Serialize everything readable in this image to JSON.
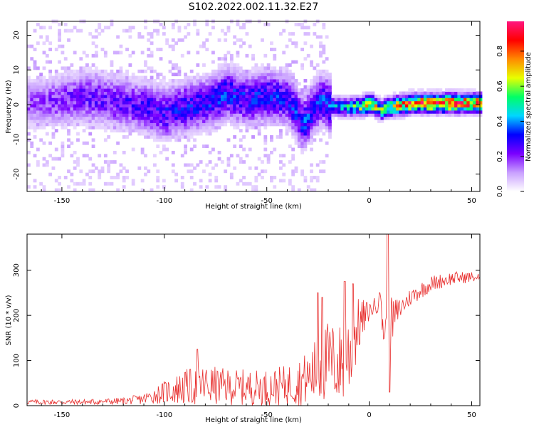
{
  "title": "S102.2022.002.11.32.E27",
  "colors": {
    "snr_line": "#e8302f",
    "axes": "#000000"
  },
  "chart_data": [
    {
      "type": "heatmap",
      "xlabel": "Height of straight line (km)",
      "ylabel": "Frequency (Hz)",
      "xlim": [
        -167,
        54
      ],
      "ylim": [
        -25,
        24
      ],
      "x_ticks": [
        -150,
        -100,
        -50,
        0,
        50
      ],
      "y_ticks": [
        -20,
        -10,
        0,
        10,
        20
      ],
      "x_tick_labels": [
        "-150",
        "-100",
        "-50",
        "0",
        "50"
      ],
      "y_tick_labels": [
        "-20",
        "-10",
        "0",
        "10",
        "20"
      ],
      "colorbar": {
        "label": "Normalized spectral amplitude",
        "range": [
          0.0,
          0.97
        ],
        "ticks": [
          0.0,
          0.2,
          0.4,
          0.6,
          0.8
        ],
        "tick_labels": [
          "0.0",
          "0.2",
          "0.4",
          "0.6",
          "0.8"
        ],
        "colormap": [
          "#ffffff",
          "#c9a0ff",
          "#7a00ff",
          "#0000ff",
          "#00d6ff",
          "#00ff66",
          "#e8ff00",
          "#ff8a00",
          "#ff0000",
          "#ff1680"
        ]
      },
      "ridge": [
        {
          "x": -165,
          "freq": 0,
          "amp": 0.18
        },
        {
          "x": -150,
          "freq": 1,
          "amp": 0.22
        },
        {
          "x": -140,
          "freq": 2,
          "amp": 0.24
        },
        {
          "x": -130,
          "freq": 1,
          "amp": 0.25
        },
        {
          "x": -120,
          "freq": 0,
          "amp": 0.26
        },
        {
          "x": -110,
          "freq": -1,
          "amp": 0.28
        },
        {
          "x": -100,
          "freq": -3,
          "amp": 0.3
        },
        {
          "x": -90,
          "freq": -1,
          "amp": 0.32
        },
        {
          "x": -80,
          "freq": 0,
          "amp": 0.33
        },
        {
          "x": -70,
          "freq": 3,
          "amp": 0.34
        },
        {
          "x": -60,
          "freq": 1,
          "amp": 0.32
        },
        {
          "x": -50,
          "freq": 2,
          "amp": 0.33
        },
        {
          "x": -40,
          "freq": 1,
          "amp": 0.32
        },
        {
          "x": -33,
          "freq": -6,
          "amp": 0.35
        },
        {
          "x": -25,
          "freq": 1,
          "amp": 0.34
        },
        {
          "x": -18,
          "freq": -1,
          "amp": 0.4
        },
        {
          "x": -10,
          "freq": -1,
          "amp": 0.5
        },
        {
          "x": -5,
          "freq": -1,
          "amp": 0.62
        },
        {
          "x": 0,
          "freq": 0,
          "amp": 0.72
        },
        {
          "x": 5,
          "freq": -2,
          "amp": 0.6
        },
        {
          "x": 10,
          "freq": -1,
          "amp": 0.7
        },
        {
          "x": 20,
          "freq": 0,
          "amp": 0.85
        },
        {
          "x": 30,
          "freq": 0,
          "amp": 0.88
        },
        {
          "x": 40,
          "freq": 0,
          "amp": 0.9
        },
        {
          "x": 50,
          "freq": 0,
          "amp": 0.88
        }
      ]
    },
    {
      "type": "line",
      "xlabel": "Height of straight line (km)",
      "ylabel": "SNR (10 * v/v)",
      "xlim": [
        -167,
        54
      ],
      "ylim": [
        0,
        380
      ],
      "x_ticks": [
        -150,
        -100,
        -50,
        0,
        50
      ],
      "y_ticks": [
        0,
        100,
        200,
        300
      ],
      "x_tick_labels": [
        "-150",
        "-100",
        "-50",
        "0",
        "50"
      ],
      "y_tick_labels": [
        "0",
        "100",
        "200",
        "300"
      ],
      "series": [
        {
          "envelope": [
            {
              "x": -167,
              "mean": 8,
              "noise": 6
            },
            {
              "x": -140,
              "mean": 8,
              "noise": 6
            },
            {
              "x": -120,
              "mean": 10,
              "noise": 8
            },
            {
              "x": -110,
              "mean": 15,
              "noise": 12
            },
            {
              "x": -100,
              "mean": 30,
              "noise": 25
            },
            {
              "x": -90,
              "mean": 40,
              "noise": 40
            },
            {
              "x": -80,
              "mean": 45,
              "noise": 45
            },
            {
              "x": -70,
              "mean": 42,
              "noise": 40
            },
            {
              "x": -60,
              "mean": 40,
              "noise": 40
            },
            {
              "x": -50,
              "mean": 40,
              "noise": 40
            },
            {
              "x": -40,
              "mean": 45,
              "noise": 45
            },
            {
              "x": -30,
              "mean": 60,
              "noise": 60
            },
            {
              "x": -25,
              "mean": 80,
              "noise": 80
            },
            {
              "x": -20,
              "mean": 100,
              "noise": 90
            },
            {
              "x": -15,
              "mean": 90,
              "noise": 90
            },
            {
              "x": -10,
              "mean": 110,
              "noise": 100
            },
            {
              "x": -5,
              "mean": 180,
              "noise": 60
            },
            {
              "x": 0,
              "mean": 210,
              "noise": 20
            },
            {
              "x": 5,
              "mean": 230,
              "noise": 20
            },
            {
              "x": 8,
              "mean": 150,
              "noise": 80
            },
            {
              "x": 10,
              "mean": 180,
              "noise": 60
            },
            {
              "x": 15,
              "mean": 215,
              "noise": 25
            },
            {
              "x": 20,
              "mean": 240,
              "noise": 20
            },
            {
              "x": 30,
              "mean": 270,
              "noise": 18
            },
            {
              "x": 40,
              "mean": 282,
              "noise": 15
            },
            {
              "x": 50,
              "mean": 285,
              "noise": 12
            },
            {
              "x": 54,
              "mean": 283,
              "noise": 10
            }
          ],
          "spikes": [
            {
              "x": -84,
              "y": 125
            },
            {
              "x": -25,
              "y": 250
            },
            {
              "x": -23,
              "y": 240
            },
            {
              "x": -12,
              "y": 275
            },
            {
              "x": -8,
              "y": 270
            },
            {
              "x": 5,
              "y": 250
            },
            {
              "x": 9,
              "y": 380
            },
            {
              "x": 10,
              "y": 30
            }
          ]
        }
      ]
    }
  ]
}
